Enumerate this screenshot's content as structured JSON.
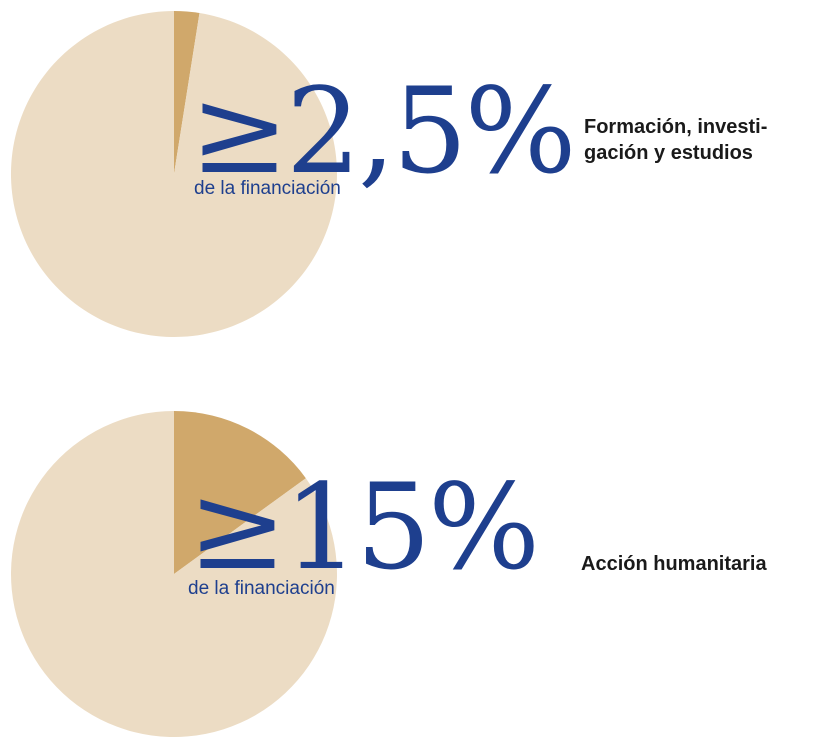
{
  "colors": {
    "pie_rest": "#ecdcc4",
    "pie_share": "#d0a86b",
    "accent_text": "#1e3f8e",
    "label_text": "#1a1a1a"
  },
  "chart_data": [
    {
      "type": "pie",
      "headline": "≥2,5%",
      "caption": "de la financiación",
      "label": "Formación, investigación y estudios",
      "label_lines": [
        "Formación, investi-",
        "gación y estudios"
      ],
      "slices": [
        {
          "value": 2.5,
          "color": "#d0a86b"
        },
        {
          "value": 97.5,
          "color": "#ecdcc4"
        }
      ]
    },
    {
      "type": "pie",
      "headline": "≥15%",
      "caption": "de la financiación",
      "label": "Acción humanitaria",
      "label_lines": [
        "Acción humanitaria"
      ],
      "slices": [
        {
          "value": 15,
          "color": "#d0a86b"
        },
        {
          "value": 85,
          "color": "#ecdcc4"
        }
      ]
    }
  ]
}
